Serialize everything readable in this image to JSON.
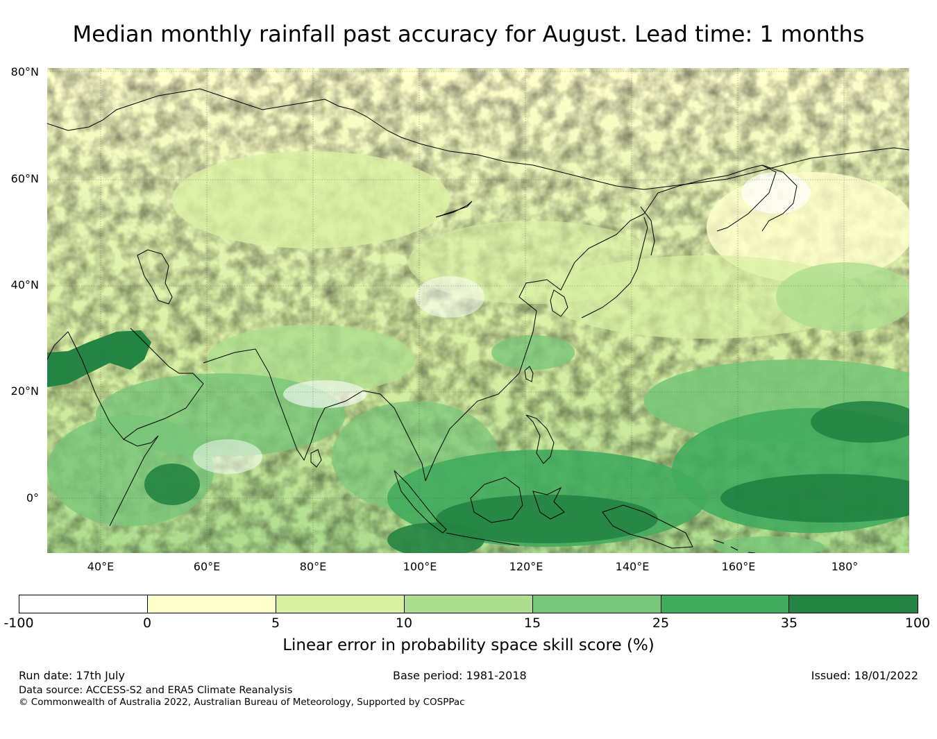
{
  "title": "Median monthly rainfall past accuracy for August. Lead time: 1 months",
  "map": {
    "lat_labels": [
      "80°N",
      "60°N",
      "40°N",
      "20°N",
      "0°"
    ],
    "lon_labels": [
      "40°E",
      "60°E",
      "80°E",
      "100°E",
      "120°E",
      "140°E",
      "160°E",
      "180°"
    ],
    "lat_range": [
      -10,
      80
    ],
    "lon_range": [
      30,
      192
    ]
  },
  "colorbar": {
    "ticks": [
      "-100",
      "0",
      "5",
      "10",
      "15",
      "25",
      "35",
      "100"
    ],
    "colors": [
      "#ffffff",
      "#ffffcc",
      "#d9f0a3",
      "#addd8e",
      "#78c679",
      "#41ab5d",
      "#238443"
    ],
    "label": "Linear error in probability space skill score (%)"
  },
  "footer": {
    "run_date": "Run date: 17th July",
    "base_period": "Base period: 1981-2018",
    "issued": "Issued: 18/01/2022",
    "data_source": "Data source: ACCESS-S2 and ERA5 Climate Reanalysis",
    "copyright": "© Commonwealth of Australia 2022, Australian Bureau of Meteorology, Supported by COSPPac"
  }
}
